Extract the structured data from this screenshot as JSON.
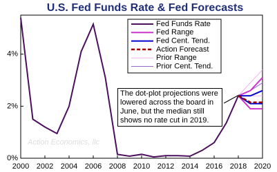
{
  "chart_data": {
    "type": "line",
    "title": "U.S. Fed Funds Rate & Fed Forecasts",
    "watermark": "Action Economics, llc",
    "annotation": "The dot-plot projections were lowered across the board in June, but the median still shows no rate cut in 2019.",
    "xlim": [
      2000,
      2020
    ],
    "xticks": [
      2000,
      2002,
      2004,
      2006,
      2008,
      2010,
      2012,
      2014,
      2016,
      2018,
      2020
    ],
    "ylim": [
      0,
      5.5
    ],
    "yticks": [
      {
        "value": 0,
        "label": "0%"
      },
      {
        "value": 2,
        "label": "2%"
      },
      {
        "value": 4,
        "label": "4%"
      }
    ],
    "series": [
      {
        "name": "Fed Funds Rate",
        "color": "#4b0f5e",
        "line_width": 2,
        "x": [
          2000,
          2001,
          2002,
          2003,
          2004,
          2005,
          2006,
          2007,
          2008,
          2009,
          2010,
          2011,
          2012,
          2013,
          2014,
          2015,
          2016,
          2017,
          2018
        ],
        "values": [
          5.4,
          1.5,
          1.2,
          0.95,
          2.0,
          4.1,
          5.15,
          3.1,
          0.15,
          0.08,
          0.15,
          0.05,
          0.1,
          0.1,
          0.08,
          0.3,
          0.6,
          1.35,
          2.4
        ]
      },
      {
        "name": "Fed Range",
        "color": "#cc33cc",
        "line_width": 2,
        "x": [
          2018,
          2019,
          2020
        ],
        "values": [
          2.4,
          2.6,
          3.1
        ],
        "values_low": [
          2.4,
          1.9,
          1.9
        ]
      },
      {
        "name": "Fed Cent. Tend.",
        "color": "#0000cc",
        "line_width": 2,
        "x": [
          2018,
          2019,
          2020
        ],
        "values": [
          2.4,
          2.4,
          2.6
        ],
        "values_low": [
          2.4,
          2.1,
          2.1
        ]
      },
      {
        "name": "Action Forecast",
        "color": "#990000",
        "line_width": 2.5,
        "dash": true,
        "x": [
          2018,
          2019,
          2020
        ],
        "values": [
          2.4,
          2.15,
          2.15
        ]
      },
      {
        "name": "Prior Range",
        "color": "#f0b0f0",
        "line_width": 1,
        "x": [
          2018,
          2019,
          2020
        ],
        "values": [
          2.4,
          2.9,
          3.4
        ],
        "values_low": [
          2.4,
          2.4,
          2.4
        ]
      },
      {
        "name": "Prior Cent. Tend.",
        "color": "#9966cc",
        "line_width": 1,
        "x": [
          2018,
          2019,
          2020
        ],
        "values": [
          2.4,
          2.6,
          2.9
        ],
        "values_low": [
          2.4,
          2.4,
          2.6
        ]
      }
    ]
  }
}
